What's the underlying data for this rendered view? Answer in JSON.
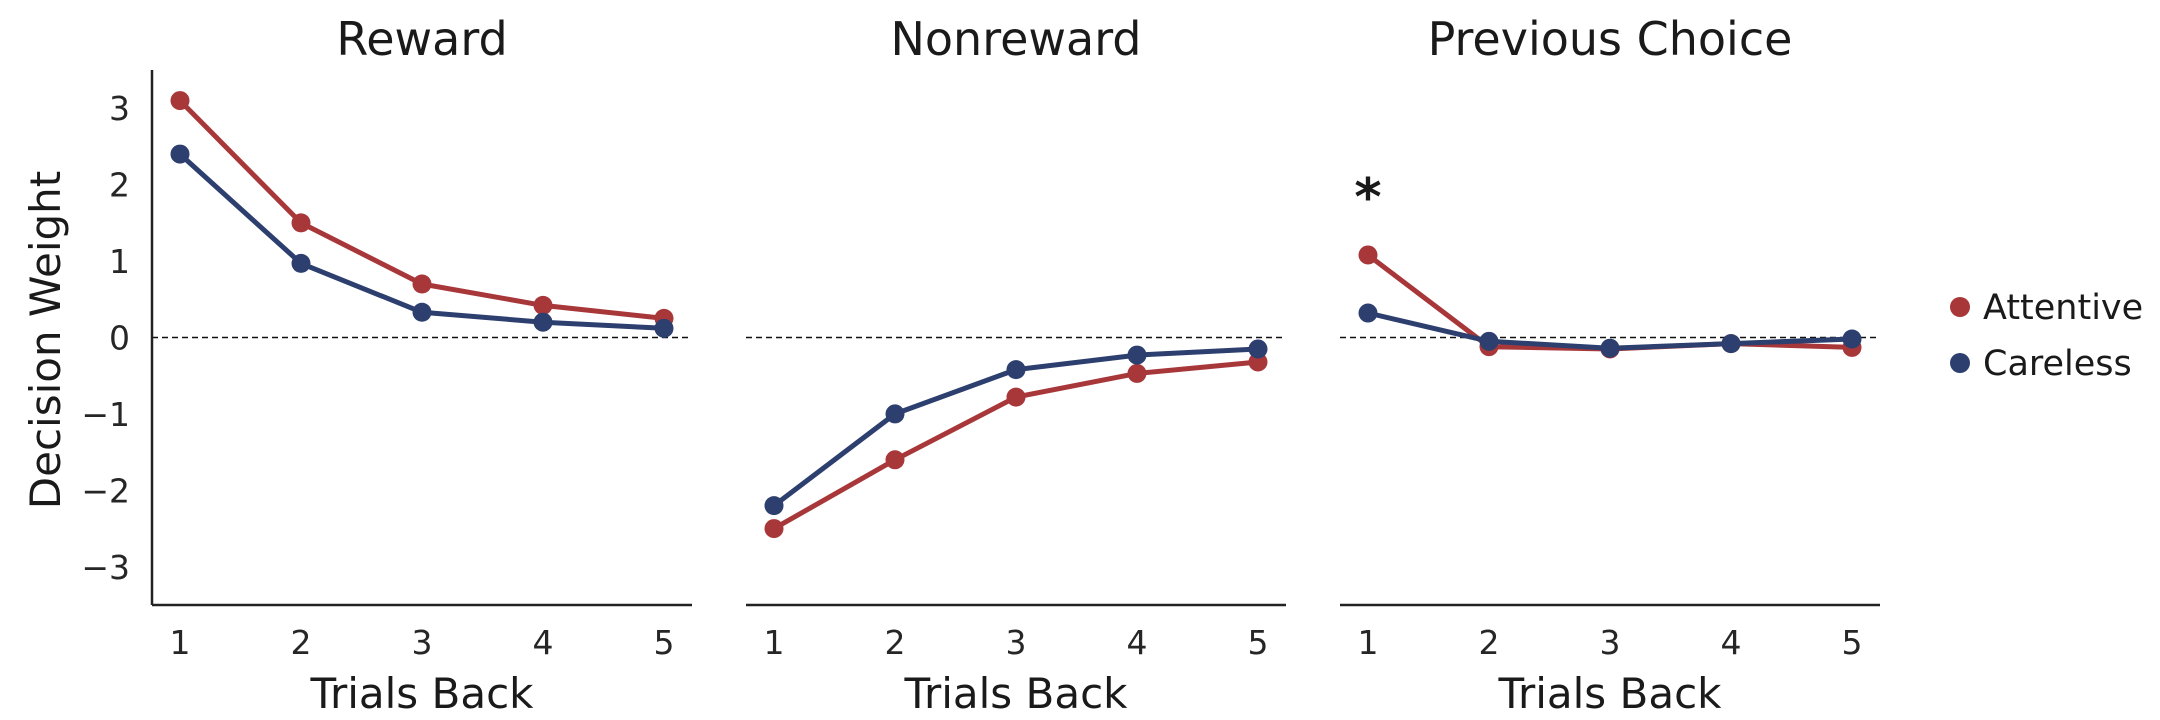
{
  "chart_data": {
    "type": "line",
    "ylabel": "Decision Weight",
    "ylim": [
      -3.5,
      3.5
    ],
    "yticks": [
      3,
      2,
      1,
      0,
      -1,
      -2,
      -3
    ],
    "ytick_labels": [
      "3",
      "2",
      "1",
      "0",
      "−1",
      "−2",
      "−3"
    ],
    "x": [
      1,
      2,
      3,
      4,
      5
    ],
    "x_tick_labels": [
      "1",
      "2",
      "3",
      "4",
      "5"
    ],
    "xlabel": "Trials Back",
    "zero_line": true,
    "grid": false,
    "legend_position": "right",
    "series_meta": [
      {
        "name": "Attentive",
        "color": "#A8373A"
      },
      {
        "name": "Careless",
        "color": "#2D3F6E"
      }
    ],
    "panels": [
      {
        "title": "Reward",
        "annotation": "",
        "series": [
          {
            "name": "Attentive",
            "values": [
              3.1,
              1.5,
              0.7,
              0.42,
              0.25
            ]
          },
          {
            "name": "Careless",
            "values": [
              2.4,
              0.97,
              0.33,
              0.2,
              0.12
            ]
          }
        ]
      },
      {
        "title": "Nonreward",
        "annotation": "",
        "series": [
          {
            "name": "Attentive",
            "values": [
              -2.5,
              -1.6,
              -0.78,
              -0.47,
              -0.32
            ]
          },
          {
            "name": "Careless",
            "values": [
              -2.2,
              -1.0,
              -0.42,
              -0.23,
              -0.15
            ]
          }
        ]
      },
      {
        "title": "Previous Choice",
        "annotation": "*",
        "series": [
          {
            "name": "Attentive",
            "values": [
              1.08,
              -0.12,
              -0.15,
              -0.08,
              -0.13
            ]
          },
          {
            "name": "Careless",
            "values": [
              0.32,
              -0.05,
              -0.14,
              -0.08,
              -0.02
            ]
          }
        ]
      }
    ]
  }
}
